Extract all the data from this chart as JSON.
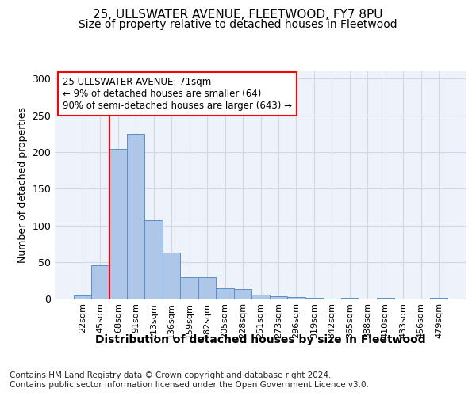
{
  "title": "25, ULLSWATER AVENUE, FLEETWOOD, FY7 8PU",
  "subtitle": "Size of property relative to detached houses in Fleetwood",
  "xlabel": "Distribution of detached houses by size in Fleetwood",
  "ylabel": "Number of detached properties",
  "bar_labels": [
    "22sqm",
    "45sqm",
    "68sqm",
    "91sqm",
    "113sqm",
    "136sqm",
    "159sqm",
    "182sqm",
    "205sqm",
    "228sqm",
    "251sqm",
    "273sqm",
    "296sqm",
    "319sqm",
    "342sqm",
    "365sqm",
    "388sqm",
    "410sqm",
    "433sqm",
    "456sqm",
    "479sqm"
  ],
  "bar_values": [
    5,
    46,
    204,
    225,
    107,
    63,
    30,
    30,
    15,
    14,
    6,
    4,
    3,
    2,
    1,
    2,
    0,
    2,
    0,
    0,
    2
  ],
  "bar_color": "#aec6e8",
  "bar_edge_color": "#5b8fc9",
  "vline_x": 2,
  "vline_color": "red",
  "annotation_text": "25 ULLSWATER AVENUE: 71sqm\n← 9% of detached houses are smaller (64)\n90% of semi-detached houses are larger (643) →",
  "annotation_box_color": "white",
  "annotation_box_edge_color": "red",
  "ylim": [
    0,
    310
  ],
  "yticks": [
    0,
    50,
    100,
    150,
    200,
    250,
    300
  ],
  "footer_text": "Contains HM Land Registry data © Crown copyright and database right 2024.\nContains public sector information licensed under the Open Government Licence v3.0.",
  "grid_color": "#d0d8e8",
  "background_color": "#eef2fa",
  "title_fontsize": 11,
  "subtitle_fontsize": 10,
  "xlabel_fontsize": 10,
  "ylabel_fontsize": 9,
  "footer_fontsize": 7.5,
  "tick_fontsize": 8
}
